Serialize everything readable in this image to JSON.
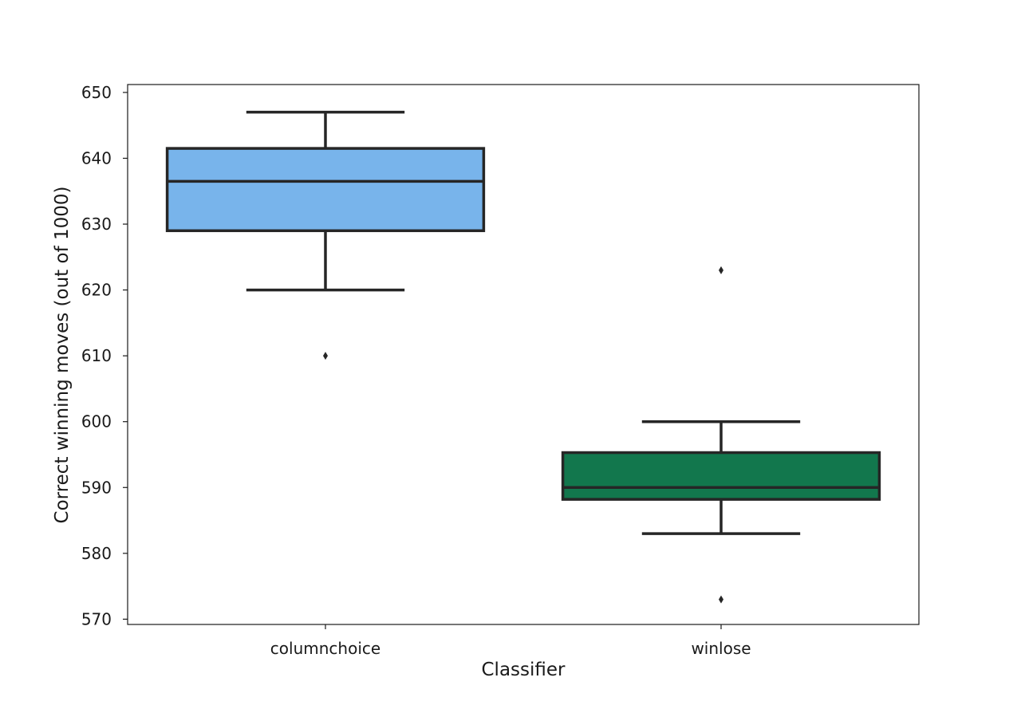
{
  "chart_data": {
    "type": "box",
    "title": "",
    "xlabel": "Classifier",
    "ylabel": "Correct winning moves (out of 1000)",
    "categories": [
      "columnchoice",
      "winlose"
    ],
    "ylim": [
      569.2,
      651.2
    ],
    "yticks": [
      570,
      580,
      590,
      600,
      610,
      620,
      630,
      640,
      650
    ],
    "grid": false,
    "boxes": [
      {
        "category": "columnchoice",
        "color": "#78b4eb",
        "whisker_low": 620,
        "q1": 629,
        "median": 636.5,
        "q3": 641.5,
        "whisker_high": 647,
        "outliers": [
          610
        ]
      },
      {
        "category": "winlose",
        "color": "#12774d",
        "whisker_low": 583,
        "q1": 588.2,
        "median": 590,
        "q3": 595.3,
        "whisker_high": 600,
        "outliers": [
          573,
          623
        ]
      }
    ]
  }
}
